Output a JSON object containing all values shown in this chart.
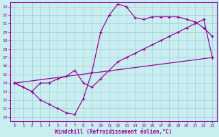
{
  "xlabel": "Windchill (Refroidissement éolien,°C)",
  "xlim": [
    0,
    23
  ],
  "ylim": [
    10,
    23
  ],
  "xticks": [
    0,
    1,
    2,
    3,
    4,
    5,
    6,
    7,
    8,
    9,
    10,
    11,
    12,
    13,
    14,
    15,
    16,
    17,
    18,
    19,
    20,
    21,
    22,
    23
  ],
  "yticks": [
    10,
    11,
    12,
    13,
    14,
    15,
    16,
    17,
    18,
    19,
    20,
    21,
    22,
    23
  ],
  "bg_color": "#c8eef0",
  "grid_color": "#a0cdd4",
  "line_color": "#990099",
  "line1_x": [
    0,
    1,
    2,
    3,
    4,
    5,
    6,
    7,
    8,
    9,
    10,
    11,
    12,
    13,
    14,
    15,
    16,
    17,
    18,
    19,
    20,
    21,
    22,
    23
  ],
  "line1_y": [
    14.0,
    13.5,
    13.0,
    12.0,
    11.5,
    11.0,
    10.5,
    10.3,
    12.2,
    15.3,
    20.0,
    22.0,
    23.3,
    23.0,
    21.7,
    21.5,
    21.8,
    21.8,
    21.8,
    21.8,
    21.5,
    21.2,
    20.5,
    19.5
  ],
  "line2_x": [
    0,
    2,
    3,
    4,
    5,
    6,
    7,
    8,
    9,
    10,
    11,
    12,
    13,
    14,
    15,
    16,
    17,
    18,
    19,
    20,
    21,
    22,
    23
  ],
  "line2_y": [
    14.0,
    13.0,
    14.0,
    14.0,
    14.5,
    14.8,
    15.5,
    14.0,
    13.5,
    14.5,
    15.5,
    16.5,
    17.0,
    17.5,
    18.0,
    18.5,
    19.0,
    19.5,
    20.0,
    20.5,
    21.0,
    21.5,
    17.0
  ],
  "line3_x": [
    0,
    23
  ],
  "line3_y": [
    14.0,
    17.0
  ]
}
